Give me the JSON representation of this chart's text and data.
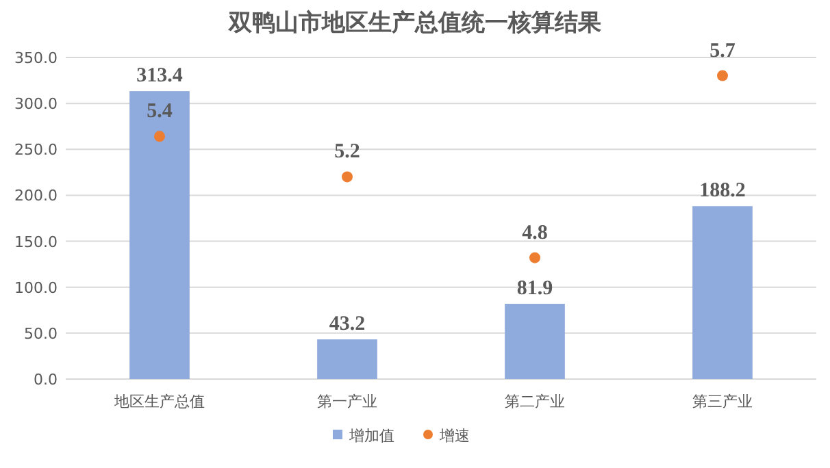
{
  "chart_data": {
    "type": "bar",
    "title": "双鸭山市地区生产总值统一核算结果",
    "categories": [
      "地区生产总值",
      "第一产业",
      "第二产业",
      "第三产业"
    ],
    "series": [
      {
        "name": "增加值",
        "color": "#8faadc",
        "values": [
          313.4,
          43.2,
          81.9,
          188.2
        ]
      },
      {
        "name": "增速",
        "type": "scatter",
        "axis": "y2",
        "color": "#ed7d31",
        "values": [
          5.4,
          5.2,
          4.8,
          5.7
        ]
      }
    ],
    "ylim": [
      0,
      350
    ],
    "yticks": [
      {
        "value": 0,
        "label": "0.0"
      },
      {
        "value": 50,
        "label": "50.0"
      },
      {
        "value": 100,
        "label": "100.0"
      },
      {
        "value": 150,
        "label": "150.0"
      },
      {
        "value": 200,
        "label": "200.0"
      },
      {
        "value": 250,
        "label": "250.0"
      },
      {
        "value": 300,
        "label": "300.0"
      },
      {
        "value": 350,
        "label": "350.0"
      }
    ],
    "y2lim": [
      4.2,
      5.79
    ],
    "grid": "y",
    "legend": "bottom",
    "marker": "circle",
    "data_labels": true
  }
}
